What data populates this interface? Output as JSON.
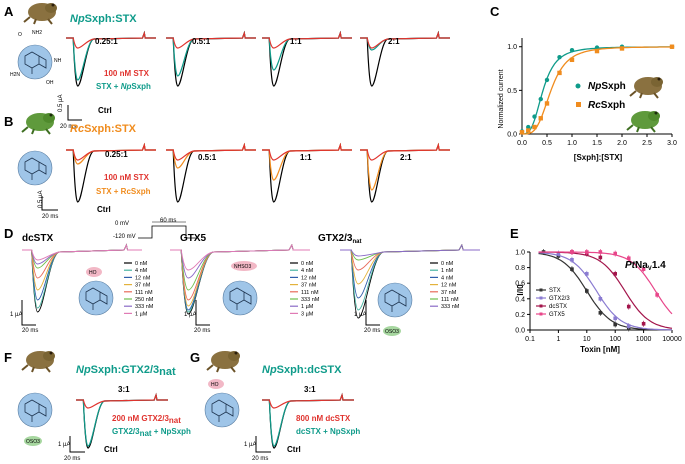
{
  "colors": {
    "green": "#0f9b8a",
    "orange": "#f08c1e",
    "red": "#e0332e",
    "black": "#000000",
    "mol": "#9fc5e8",
    "pink": "#f2b8c6",
    "ltgreen": "#a7d7a0"
  },
  "panelA": {
    "letter": "A",
    "title_pre": "Np",
    "title_post": "Sxph:STX",
    "ratios": [
      "0.25:1",
      "0.5:1",
      "1:1",
      "2:1"
    ],
    "lbl_stx": "100 nM STX",
    "lbl_mix_pre": "STX + ",
    "lbl_mix_it": "Np",
    "lbl_mix_post": "Sxph",
    "lbl_ctrl": "Ctrl",
    "sb_y": "0.5 µA",
    "sb_x": "20 ms"
  },
  "panelB": {
    "letter": "B",
    "title_pre": "Rc",
    "title_post": "Sxph:STX",
    "ratios": [
      "0.25:1",
      "0.5:1",
      "1:1",
      "2:1"
    ],
    "lbl_stx": "100 nM STX",
    "lbl_mix": "STX + RcSxph",
    "lbl_ctrl": "Ctrl",
    "sb_y": "0.5 µA",
    "sb_x": "20 ms"
  },
  "panelC": {
    "letter": "C",
    "ylabel": "Normalized current",
    "xlabel": "[Sxph]:[STX]",
    "legend_np_it": "Np",
    "legend_np": "Sxph",
    "legend_rc_it": "Rc",
    "legend_rc": "Sxph",
    "x_ticks": [
      "0.0",
      "0.5",
      "1.0",
      "1.5",
      "2.0",
      "2.5",
      "3.0"
    ],
    "y_ticks": [
      "0.0",
      "0.5",
      "1.0"
    ]
  },
  "chart_data": [
    {
      "type": "scatter",
      "title": "C",
      "xlabel": "[Sxph]:[STX]",
      "ylabel": "Normalized current",
      "xlim": [
        0,
        3
      ],
      "ylim": [
        0,
        1.1
      ],
      "series": [
        {
          "name": "NpSxph",
          "color": "#0f9b8a",
          "x": [
            0,
            0.125,
            0.25,
            0.375,
            0.5,
            0.75,
            1.0,
            1.5,
            2.0,
            3.0
          ],
          "y": [
            0.03,
            0.08,
            0.2,
            0.4,
            0.62,
            0.88,
            0.96,
            0.99,
            1.0,
            1.0
          ]
        },
        {
          "name": "RcSxph",
          "color": "#f08c1e",
          "x": [
            0,
            0.125,
            0.25,
            0.375,
            0.5,
            0.75,
            1.0,
            1.5,
            2.0,
            3.0
          ],
          "y": [
            0.02,
            0.04,
            0.08,
            0.18,
            0.35,
            0.7,
            0.85,
            0.95,
            0.98,
            1.0
          ]
        }
      ]
    },
    {
      "type": "scatter",
      "title": "PtNav1.4",
      "xlabel": "Toxin [nM]",
      "ylabel": "I/I0",
      "xscale": "log",
      "xlim": [
        0.1,
        10000
      ],
      "ylim": [
        0,
        1.0
      ],
      "series": [
        {
          "name": "STX",
          "color": "#333333",
          "x": [
            0.3,
            1,
            3,
            10,
            30,
            100,
            300
          ],
          "y": [
            1.0,
            0.95,
            0.78,
            0.5,
            0.22,
            0.07,
            0.02
          ]
        },
        {
          "name": "GTX2/3",
          "color": "#8a7bd1",
          "x": [
            1,
            3,
            10,
            30,
            100,
            300
          ],
          "y": [
            0.98,
            0.9,
            0.72,
            0.4,
            0.15,
            0.05
          ]
        },
        {
          "name": "dcSTX",
          "color": "#a3154b",
          "x": [
            3,
            10,
            30,
            100,
            300,
            1000
          ],
          "y": [
            1.0,
            0.98,
            0.93,
            0.72,
            0.3,
            0.08
          ]
        },
        {
          "name": "GTX5",
          "color": "#e8468a",
          "x": [
            3,
            10,
            30,
            100,
            300,
            1000,
            3000
          ],
          "y": [
            1.0,
            1.0,
            1.0,
            0.98,
            0.92,
            0.78,
            0.45
          ]
        }
      ]
    }
  ],
  "panelD": {
    "letter": "D",
    "t1": "dcSTX",
    "t2": "GTX5",
    "t3_pre": "GTX2/3",
    "t3_sub": "nat",
    "proto": [
      "0 mV",
      "-120 mV",
      "60 ms"
    ],
    "leg1": [
      "0 nM",
      "4 nM",
      "12 nM",
      "37 nM",
      "111 nM",
      "250 nM",
      "333 nM",
      "1 µM"
    ],
    "leg2": [
      "0 nM",
      "4 nM",
      "12 nM",
      "37 nM",
      "111 nM",
      "333 nM",
      "1 µM",
      "3 µM"
    ],
    "leg3": [
      "0 nM",
      "1 nM",
      "4 nM",
      "12 nM",
      "37 nM",
      "111 nM",
      "333 nM"
    ],
    "sb_y": "1 µA",
    "sb_x": "20 ms",
    "mod_ho": "HO",
    "mod_nhso3": "NHSO3",
    "mod_oso3": "OSO3"
  },
  "panelE": {
    "letter": "E",
    "title_pre": "Pt",
    "title_post": "Na",
    "title_sub": "V",
    "title_end": "1.4",
    "ylabel": "I/I0",
    "xlabel": "Toxin [nM]",
    "legend": [
      "STX",
      "GTX2/3",
      "dcSTX",
      "GTX5"
    ],
    "x_ticks": [
      "0.1",
      "1",
      "10",
      "100",
      "1000",
      "10000"
    ],
    "y_ticks": [
      "0.0",
      "0.2",
      "0.4",
      "0.6",
      "0.8",
      "1.0"
    ]
  },
  "panelF": {
    "letter": "F",
    "title_pre": "Np",
    "title_post": "Sxph:GTX2/3",
    "title_sub": "nat",
    "ratio": "3:1",
    "lbl_tox": "200 nM GTX2/3",
    "lbl_tox_sub": "nat",
    "lbl_mix": "GTX2/3",
    "lbl_mix_sub": "nat",
    "lbl_mix_post": " + NpSxph",
    "lbl_ctrl": "Ctrl",
    "sb_y": "1 µA",
    "sb_x": "20 ms"
  },
  "panelG": {
    "letter": "G",
    "title_pre": "Np",
    "title_post": "Sxph:dcSTX",
    "ratio": "3:1",
    "lbl_tox": "800 nM dcSTX",
    "lbl_mix": "dcSTX + NpSxph",
    "lbl_ctrl": "Ctrl",
    "sb_y": "1 µA",
    "sb_x": "20 ms"
  },
  "chem": {
    "nh2": "NH2",
    "oh": "OH",
    "o": "O",
    "h2n": "H2N",
    "nh": "NH"
  }
}
